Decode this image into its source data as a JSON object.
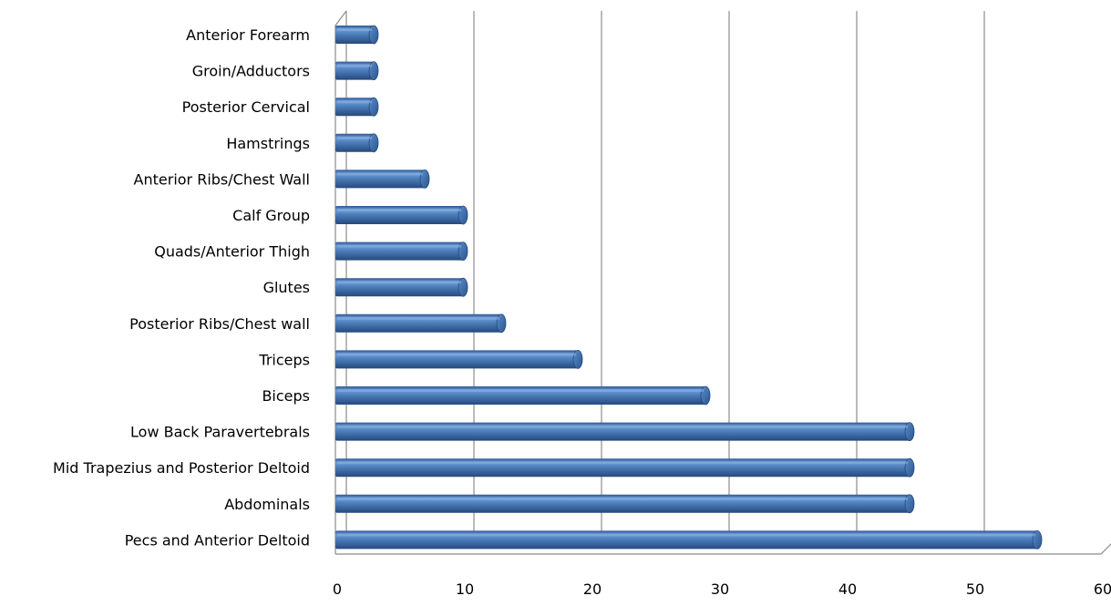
{
  "chart_data": {
    "type": "bar",
    "orientation": "horizontal",
    "style": "3d-cylinder",
    "title": "",
    "xlabel": "",
    "ylabel": "",
    "xlim": [
      0,
      60
    ],
    "x_ticks": [
      0,
      10,
      20,
      30,
      40,
      50,
      60
    ],
    "grid": "vertical",
    "legend": "none",
    "bar_color": "#4f81bd",
    "categories": [
      "Pecs and Anterior Deltoid",
      "Abdominals",
      "Mid Trapezius and  Posterior Deltoid",
      "Low Back Paravertebrals",
      "Biceps",
      "Triceps",
      "Posterior Ribs/Chest wall",
      "Glutes",
      "Quads/Anterior Thigh",
      "Calf Group",
      "Anterior Ribs/Chest Wall",
      "Hamstrings",
      "Posterior Cervical",
      "Groin/Adductors",
      "Anterior Forearm"
    ],
    "values": [
      55,
      45,
      45,
      45,
      29,
      19,
      13,
      10,
      10,
      10,
      7,
      3,
      3,
      3,
      3
    ]
  }
}
